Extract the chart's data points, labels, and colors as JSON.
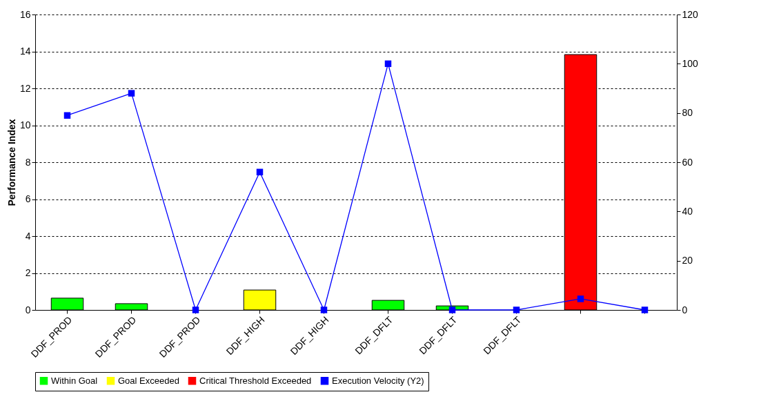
{
  "chart_data": {
    "type": "bar",
    "ylabel": "Performance Index",
    "categories": [
      "DDF_PROD",
      "DDF_PROD",
      "DDF_PROD",
      "DDF_HIGH",
      "DDF_HIGH",
      "DDF_DFLT",
      "DDF_DFLT",
      "DDF_DFLT",
      null,
      null
    ],
    "series": [
      {
        "name": "Within Goal",
        "color": "#00ff00",
        "values": [
          0.64,
          0.34,
          null,
          null,
          null,
          0.52,
          0.22,
          null,
          null,
          null
        ]
      },
      {
        "name": "Goal Exceeded",
        "color": "#ffff00",
        "values": [
          null,
          null,
          null,
          1.08,
          null,
          null,
          null,
          null,
          null,
          null
        ]
      },
      {
        "name": "Critical Threshold Exceeded",
        "color": "#ff0000",
        "values": [
          null,
          null,
          null,
          null,
          null,
          null,
          null,
          null,
          13.83,
          null
        ]
      },
      {
        "name": "Execution Velocity (Y2)",
        "color": "#0000ff",
        "type": "line",
        "axis": "y2",
        "marker": "square",
        "values": [
          79,
          88,
          0,
          56,
          0,
          100,
          0,
          0,
          4.5,
          0
        ]
      }
    ],
    "ylim": [
      0,
      16
    ],
    "yticks": [
      0,
      2,
      4,
      6,
      8,
      10,
      12,
      14,
      16
    ],
    "y2lim": [
      0,
      120
    ],
    "y2ticks": [
      0,
      20,
      40,
      60,
      80,
      100,
      120
    ],
    "grid": "y",
    "legend": "bottom"
  }
}
